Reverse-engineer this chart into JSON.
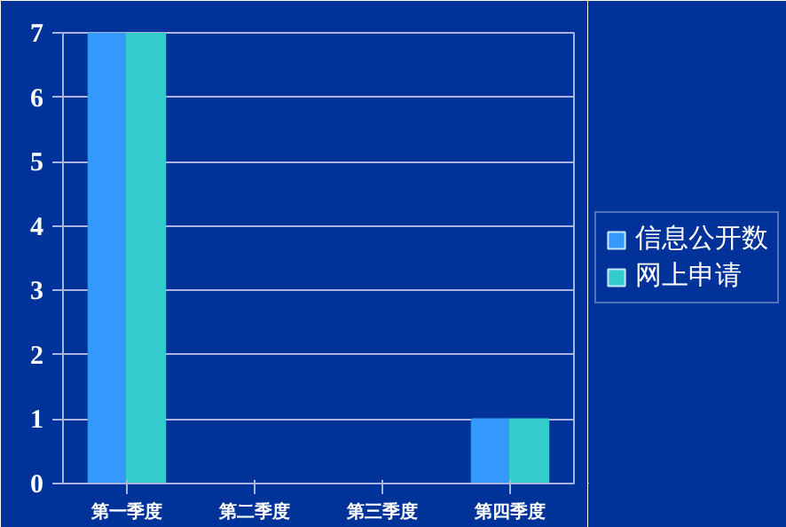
{
  "chart_data": {
    "type": "bar",
    "categories": [
      "第一季度",
      "第二季度",
      "第三季度",
      "第四季度"
    ],
    "series": [
      {
        "name": "信息公开数",
        "color": "#3399ff",
        "values": [
          7,
          0,
          0,
          1
        ]
      },
      {
        "name": "网上申请",
        "color": "#33cccc",
        "values": [
          7,
          0,
          0,
          1
        ]
      }
    ],
    "ylim": [
      0,
      7
    ],
    "yticks": [
      0,
      1,
      2,
      3,
      4,
      5,
      6,
      7
    ],
    "grid": "y",
    "legend": "right"
  }
}
